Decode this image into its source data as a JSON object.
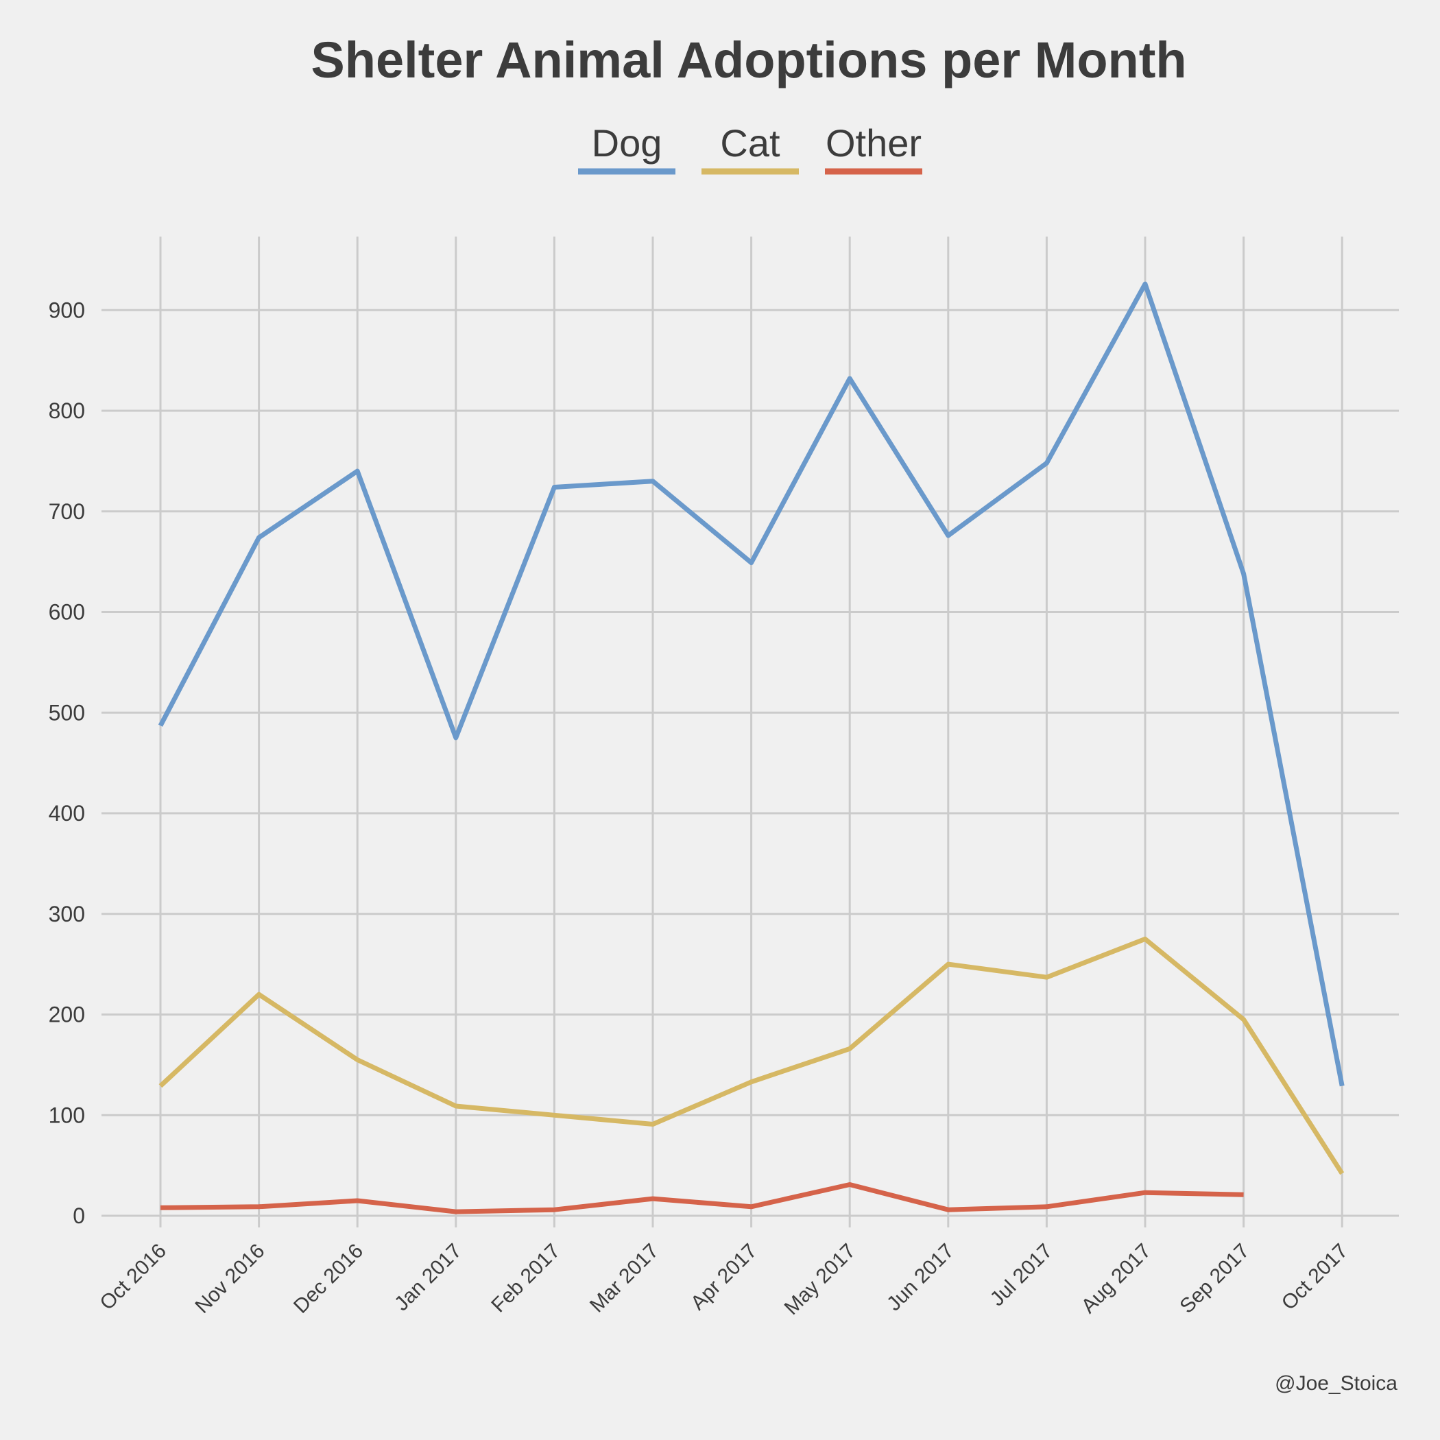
{
  "chart_data": {
    "type": "line",
    "title": "Shelter Animal Adoptions per Month",
    "xlabel": "",
    "ylabel": "",
    "x": [
      "Oct 2016",
      "Nov 2016",
      "Dec 2016",
      "Jan 2017",
      "Feb 2017",
      "Mar 2017",
      "Apr 2017",
      "May 2017",
      "Jun 2017",
      "Jul 2017",
      "Aug 2017",
      "Sep 2017",
      "Oct 2017"
    ],
    "ylim": [
      0,
      970
    ],
    "yticks": [
      0,
      100,
      200,
      300,
      400,
      500,
      600,
      700,
      800,
      900
    ],
    "grid": true,
    "legend_position": "top-center",
    "series": [
      {
        "name": "Dog",
        "color": "#6a99cb",
        "values": [
          487,
          674,
          740,
          475,
          724,
          730,
          649,
          832,
          676,
          748,
          926,
          638,
          129
        ]
      },
      {
        "name": "Cat",
        "color": "#d6b864",
        "values": [
          129,
          220,
          155,
          109,
          100,
          91,
          133,
          166,
          250,
          237,
          275,
          195,
          42
        ]
      },
      {
        "name": "Other",
        "color": "#d5634a",
        "values": [
          8,
          9,
          15,
          4,
          6,
          17,
          9,
          31,
          6,
          9,
          23,
          21,
          null
        ]
      }
    ]
  },
  "credit": "@Joe_Stoica"
}
